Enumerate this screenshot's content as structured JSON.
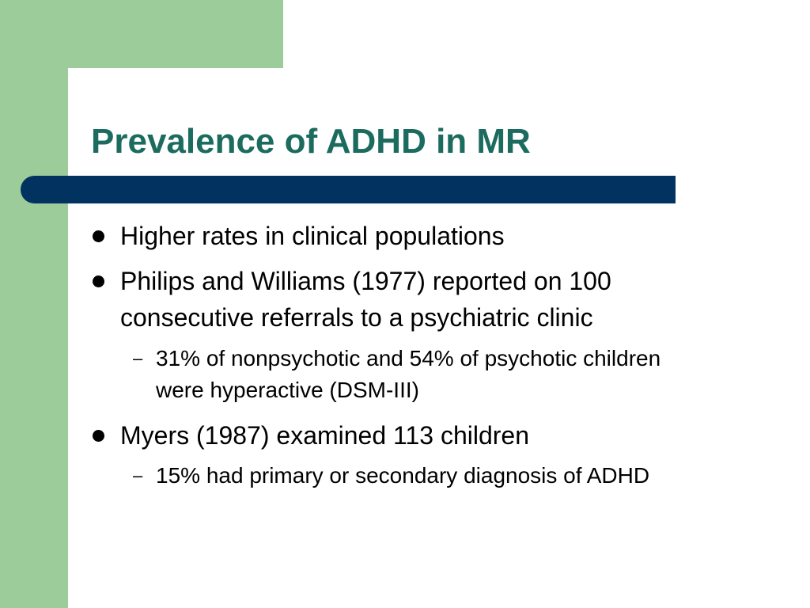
{
  "slide": {
    "title": "Prevalence of ADHD in MR",
    "bullets": [
      {
        "text_lines": [
          "Higher rates in clinical populations"
        ]
      },
      {
        "text_lines": [
          "Philips and Williams (1977) reported on 100",
          "consecutive referrals to a psychiatric clinic"
        ]
      },
      {
        "text_lines": [
          "Myers (1987) examined 113 children"
        ]
      }
    ],
    "sub_bullets": [
      {
        "marker": "–",
        "text_lines": [
          "31% of nonpsychotic and 54% of psychotic children",
          "were hyperactive (DSM-III)"
        ]
      },
      {
        "marker": "–",
        "text_lines": [
          "15% had primary or secondary diagnosis of ADHD"
        ]
      }
    ]
  },
  "colors": {
    "title": "#1b6b5f",
    "title_bar": "#02325f",
    "green_band": "#9ccc9a",
    "background": "#ffffff",
    "text": "#000000"
  }
}
